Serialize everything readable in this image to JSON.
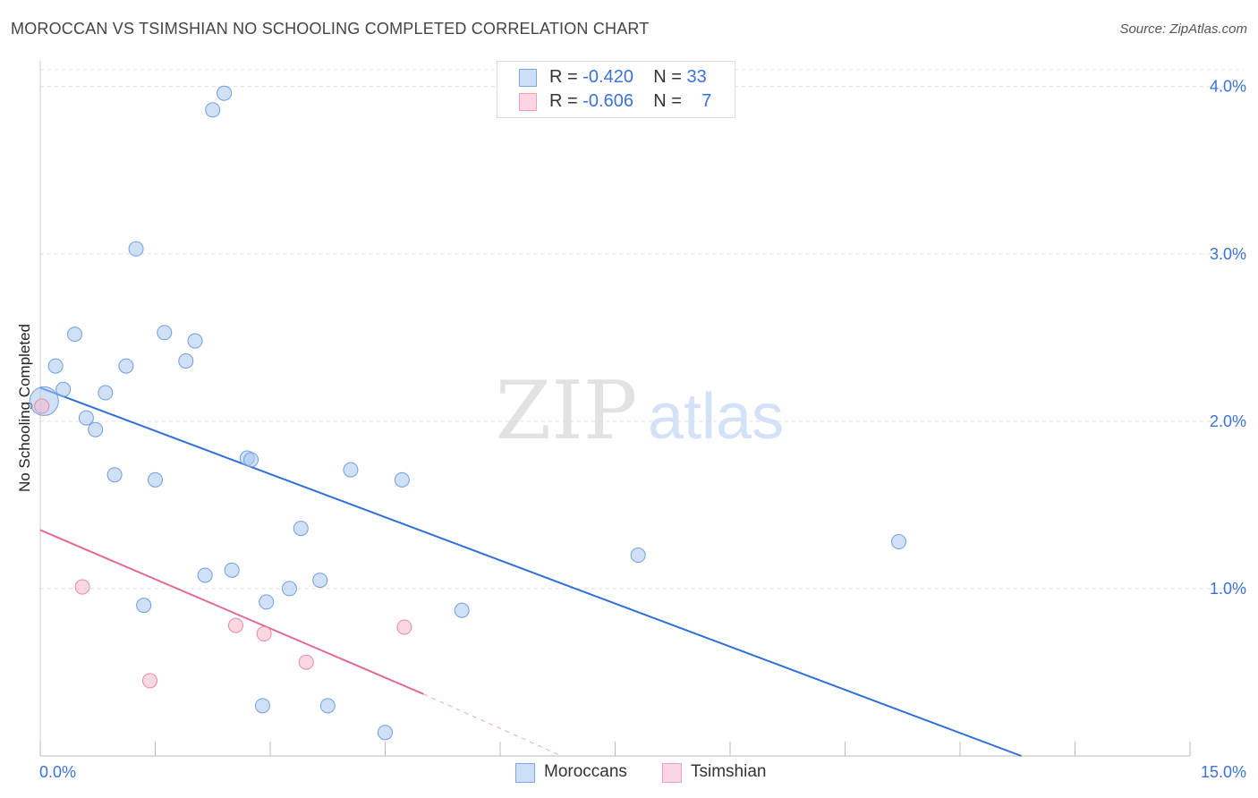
{
  "header": {
    "title": "MOROCCAN VS TSIMSHIAN NO SCHOOLING COMPLETED CORRELATION CHART",
    "source": "Source: ZipAtlas.com"
  },
  "watermark": {
    "zip": "ZIP",
    "atlas": "atlas"
  },
  "legend": {
    "rows": [
      {
        "r_label": "R = ",
        "r_value": "-0.420",
        "n_label": "N = ",
        "n_value": "33",
        "color": "#a9c8f0"
      },
      {
        "r_label": "R = ",
        "r_value": "-0.606",
        "n_label": "N = ",
        "n_value": "7",
        "color": "#f5b8cb"
      }
    ]
  },
  "bottom_legend": [
    {
      "label": "Moroccans",
      "color": "#a9c8f0"
    },
    {
      "label": "Tsimshian",
      "color": "#f5b8cb"
    }
  ],
  "chart_data": {
    "type": "scatter",
    "title": "MOROCCAN VS TSIMSHIAN NO SCHOOLING COMPLETED CORRELATION CHART",
    "xlabel": "",
    "ylabel": "No Schooling Completed",
    "xlim": [
      0,
      15
    ],
    "ylim": [
      0,
      4.1
    ],
    "x_tick_labels": [
      "0.0%",
      "15.0%"
    ],
    "y_ticks": [
      {
        "value": 1.0,
        "label": "1.0%"
      },
      {
        "value": 2.0,
        "label": "2.0%"
      },
      {
        "value": 3.0,
        "label": "3.0%"
      },
      {
        "value": 4.0,
        "label": "4.0%"
      }
    ],
    "series": [
      {
        "name": "Moroccans",
        "color": "#a9c8f0",
        "stroke": "#6f9ee0",
        "line_color": "#2f6fd6",
        "trend": {
          "x0": 0.0,
          "y0": 2.2,
          "x1": 12.8,
          "y1": 0.0,
          "dash_to": null
        },
        "points": [
          {
            "x": 0.05,
            "y": 2.12,
            "big": true
          },
          {
            "x": 0.2,
            "y": 2.33,
            "big": false
          },
          {
            "x": 0.3,
            "y": 2.19,
            "big": false
          },
          {
            "x": 0.45,
            "y": 2.52,
            "big": false
          },
          {
            "x": 0.6,
            "y": 2.02,
            "big": false
          },
          {
            "x": 0.72,
            "y": 1.95,
            "big": false
          },
          {
            "x": 0.85,
            "y": 2.17,
            "big": false
          },
          {
            "x": 0.97,
            "y": 1.68,
            "big": false
          },
          {
            "x": 1.12,
            "y": 2.33,
            "big": false
          },
          {
            "x": 1.25,
            "y": 3.03,
            "big": false
          },
          {
            "x": 1.35,
            "y": 0.9,
            "big": false
          },
          {
            "x": 1.5,
            "y": 1.65,
            "big": false
          },
          {
            "x": 1.62,
            "y": 2.53,
            "big": false
          },
          {
            "x": 1.9,
            "y": 2.36,
            "big": false
          },
          {
            "x": 2.02,
            "y": 2.48,
            "big": false
          },
          {
            "x": 2.15,
            "y": 1.08,
            "big": false
          },
          {
            "x": 2.25,
            "y": 3.86,
            "big": false
          },
          {
            "x": 2.4,
            "y": 3.96,
            "big": false
          },
          {
            "x": 2.5,
            "y": 1.11,
            "big": false
          },
          {
            "x": 2.7,
            "y": 1.78,
            "big": false
          },
          {
            "x": 2.75,
            "y": 1.77,
            "big": false
          },
          {
            "x": 2.9,
            "y": 0.3,
            "big": false
          },
          {
            "x": 2.95,
            "y": 0.92,
            "big": false
          },
          {
            "x": 3.25,
            "y": 1.0,
            "big": false
          },
          {
            "x": 3.4,
            "y": 1.36,
            "big": false
          },
          {
            "x": 3.65,
            "y": 1.05,
            "big": false
          },
          {
            "x": 3.75,
            "y": 0.3,
            "big": false
          },
          {
            "x": 4.05,
            "y": 1.71,
            "big": false
          },
          {
            "x": 4.5,
            "y": 0.14,
            "big": false
          },
          {
            "x": 4.72,
            "y": 1.65,
            "big": false
          },
          {
            "x": 5.5,
            "y": 0.87,
            "big": false
          },
          {
            "x": 7.8,
            "y": 1.2,
            "big": false
          },
          {
            "x": 11.2,
            "y": 1.28,
            "big": false
          }
        ]
      },
      {
        "name": "Tsimshian",
        "color": "#f5b8cb",
        "stroke": "#e58aa8",
        "line_color": "#e06a94",
        "trend": {
          "x0": 0.0,
          "y0": 1.35,
          "x1": 5.0,
          "y1": 0.37,
          "dash_to": {
            "x": 6.8,
            "y": 0.0
          }
        },
        "points": [
          {
            "x": 0.02,
            "y": 2.09,
            "big": false
          },
          {
            "x": 0.55,
            "y": 1.01,
            "big": false
          },
          {
            "x": 1.43,
            "y": 0.45,
            "big": false
          },
          {
            "x": 2.55,
            "y": 0.78,
            "big": false
          },
          {
            "x": 2.92,
            "y": 0.73,
            "big": false
          },
          {
            "x": 3.47,
            "y": 0.56,
            "big": false
          },
          {
            "x": 4.75,
            "y": 0.77,
            "big": false
          }
        ]
      }
    ]
  }
}
